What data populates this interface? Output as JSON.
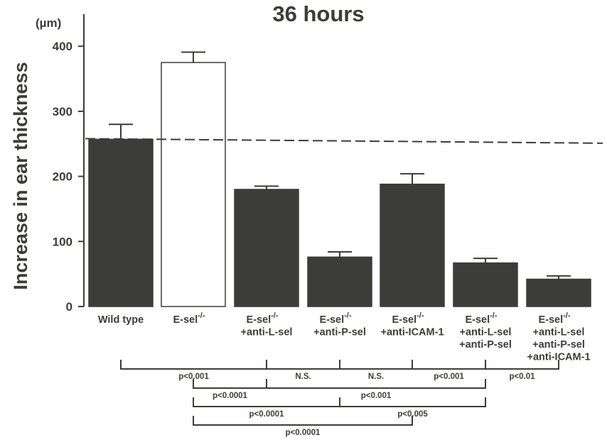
{
  "chart_data": {
    "type": "bar",
    "title": "36 hours",
    "ylabel": "Increase in ear thickness",
    "yunit": "(µm)",
    "ylim": [
      0,
      420
    ],
    "yticks": [
      "0",
      "100",
      "200",
      "300",
      "400"
    ],
    "categories": [
      [
        "Wild type"
      ],
      [
        "E-sel",
        "-/-"
      ],
      [
        "E-sel",
        "-/-",
        "+anti-L-sel"
      ],
      [
        "E-sel",
        "-/-",
        "+anti-P-sel"
      ],
      [
        "E-sel",
        "-/-",
        "+anti-ICAM-1"
      ],
      [
        "E-sel",
        "-/-",
        "+anti-L-sel",
        "+anti-P-sel"
      ],
      [
        "E-sel",
        "-/-",
        "+anti-L-sel",
        "+anti-P-sel",
        "+anti-ICAM-1"
      ]
    ],
    "values": [
      257,
      375,
      180,
      76,
      188,
      67,
      42
    ],
    "errors": [
      23,
      16,
      5,
      8,
      16,
      7,
      5
    ],
    "bar_colors": [
      "#3c3c3a",
      "#ffffff",
      "#3c3c3a",
      "#3c3c3a",
      "#3c3c3a",
      "#3c3c3a",
      "#3c3c3a"
    ],
    "reference_line": {
      "style": "dashed",
      "y_start": 258,
      "y_end": 251
    },
    "comparisons": [
      {
        "from": 0,
        "to": 2,
        "label": "p<0.001"
      },
      {
        "from": 2,
        "to": 3,
        "label": "N.S."
      },
      {
        "from": 3,
        "to": 4,
        "label": "N.S."
      },
      {
        "from": 4,
        "to": 5,
        "label": "p<0.001"
      },
      {
        "from": 5,
        "to": 6,
        "label": "p<0.01"
      },
      {
        "from": 1,
        "to": 2,
        "label": "p<0.0001"
      },
      {
        "from": 2,
        "to": 5,
        "label": "p<0.001"
      },
      {
        "from": 1,
        "to": 3,
        "label": "p<0.0001"
      },
      {
        "from": 3,
        "to": 5,
        "label": "p<0.005"
      },
      {
        "from": 1,
        "to": 4,
        "label": "p<0.0001"
      }
    ],
    "grid": false,
    "legend": "none"
  }
}
